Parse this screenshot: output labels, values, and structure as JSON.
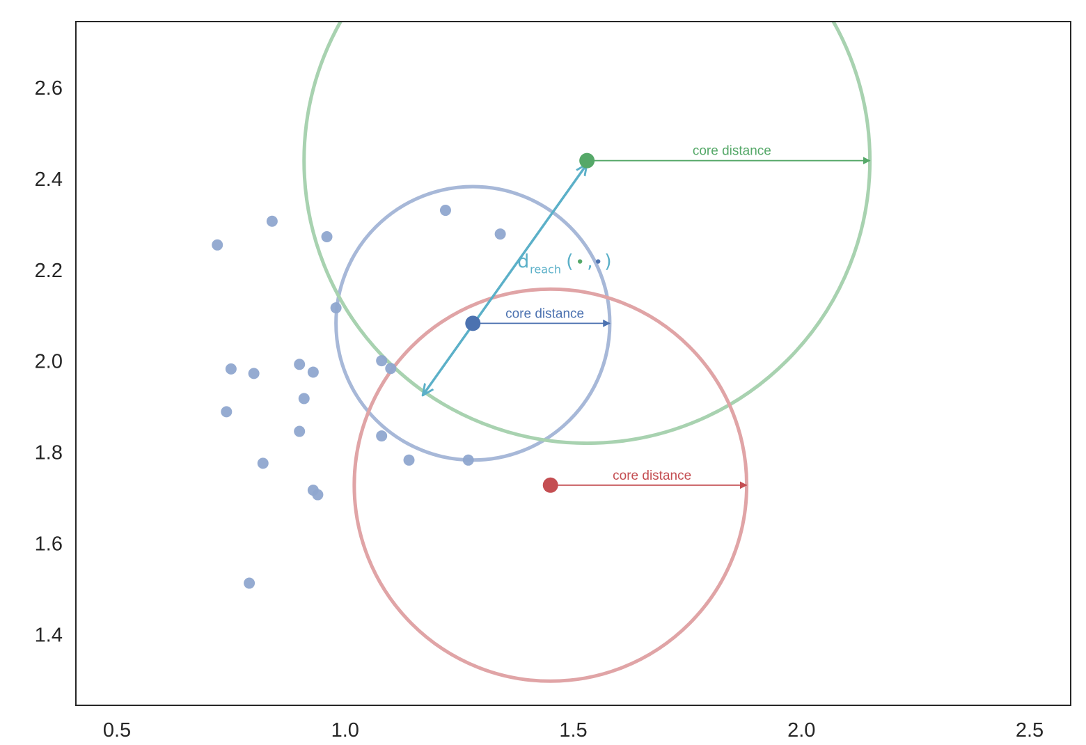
{
  "chart_data": {
    "type": "scatter",
    "title": "",
    "xlabel": "",
    "ylabel": "",
    "xlim": [
      0.41,
      2.59
    ],
    "ylim": [
      1.245,
      2.745
    ],
    "xticks": [
      0.5,
      1.0,
      1.5,
      2.0,
      2.5
    ],
    "yticks": [
      1.4,
      1.6,
      1.8,
      2.0,
      2.2,
      2.4,
      2.6
    ],
    "xtick_labels": [
      "0.5",
      "1.0",
      "1.5",
      "2.0",
      "2.5"
    ],
    "ytick_labels": [
      "1.4",
      "1.6",
      "1.8",
      "2.0",
      "2.2",
      "2.4",
      "2.6"
    ],
    "grid": false,
    "legend": "none",
    "background_points": {
      "color": "#8fa6cf",
      "points": [
        [
          0.72,
          2.255
        ],
        [
          0.84,
          2.307
        ],
        [
          0.96,
          2.273
        ],
        [
          1.22,
          2.331
        ],
        [
          1.34,
          2.279
        ],
        [
          0.98,
          2.117
        ],
        [
          0.75,
          1.983
        ],
        [
          0.8,
          1.973
        ],
        [
          0.9,
          1.993
        ],
        [
          0.93,
          1.976
        ],
        [
          1.08,
          2.001
        ],
        [
          1.1,
          1.984
        ],
        [
          0.91,
          1.918
        ],
        [
          0.74,
          1.889
        ],
        [
          0.9,
          1.846
        ],
        [
          1.08,
          1.836
        ],
        [
          1.14,
          1.783
        ],
        [
          1.27,
          1.783
        ],
        [
          0.82,
          1.776
        ],
        [
          0.93,
          1.717
        ],
        [
          0.94,
          1.707
        ],
        [
          0.79,
          1.513
        ]
      ]
    },
    "highlighted_points": [
      {
        "id": "blue",
        "x": 1.28,
        "y": 2.083,
        "color": "#4c72b0",
        "circle_color": "#a7b8d8",
        "core_distance": 0.3,
        "label": "core distance"
      },
      {
        "id": "green",
        "x": 1.53,
        "y": 2.44,
        "color": "#55a868",
        "circle_color": "#a8d2b0",
        "core_distance": 0.62,
        "label": "core distance"
      },
      {
        "id": "red",
        "x": 1.45,
        "y": 1.728,
        "color": "#c44e52",
        "circle_color": "#e0a4a6",
        "core_distance": 0.43,
        "label": "core distance"
      }
    ],
    "reachability": {
      "from": [
        1.53,
        2.44
      ],
      "to": [
        1.17,
        1.925
      ],
      "color": "#5bb0c8",
      "label_main": "d",
      "label_sub": "reach",
      "label_open": "(",
      "label_sep": ",",
      "label_close": ")",
      "label_anchor": [
        1.53,
        2.205
      ]
    }
  }
}
